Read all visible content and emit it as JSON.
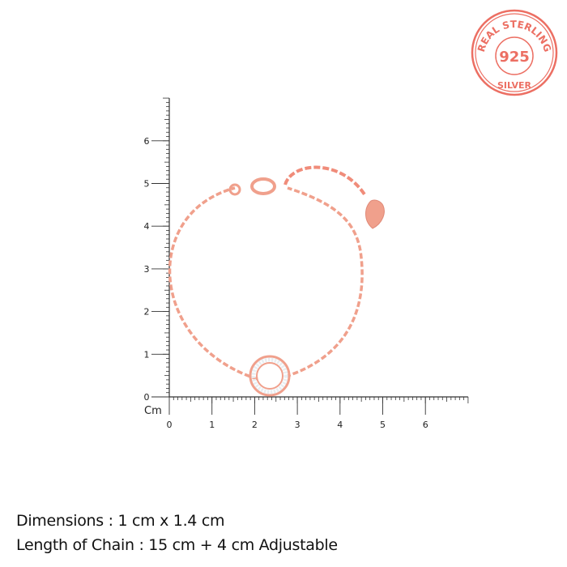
{
  "stamp": {
    "top_text": "REAL STERLING",
    "center_text": "925",
    "bottom_text": "SILVER",
    "color": "#ec6f63"
  },
  "ruler": {
    "unit": "Cm",
    "x_labels": [
      "0",
      "1",
      "2",
      "3",
      "4",
      "5",
      "6"
    ],
    "y_labels": [
      "0",
      "1",
      "2",
      "3",
      "4",
      "5",
      "6"
    ],
    "range_cm": [
      0,
      7
    ]
  },
  "product": {
    "metal_color": "#f0a08c",
    "stone_color": "#e8eef2"
  },
  "specs": {
    "dimensions": "Dimensions : 1 cm x 1.4 cm",
    "chain_length": "Length of Chain : 15 cm + 4 cm Adjustable"
  }
}
